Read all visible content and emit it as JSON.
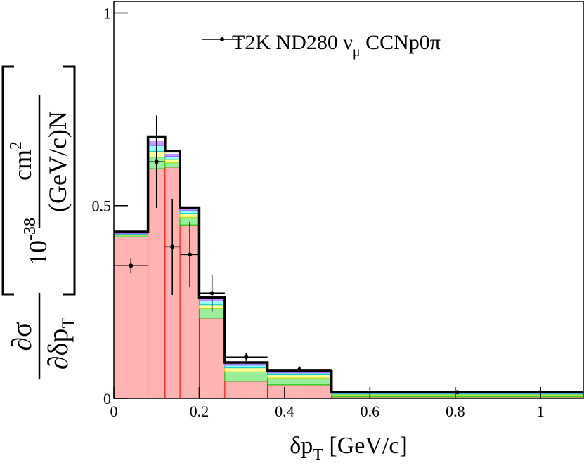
{
  "chart_data": {
    "type": "stacked_histogram",
    "xlim": [
      0,
      1.1
    ],
    "ylim": [
      0,
      1.03
    ],
    "xticks": [
      0,
      0.2,
      0.4,
      0.6,
      0.8,
      1
    ],
    "yticks": [
      0,
      0.5,
      1
    ],
    "xlabel": {
      "main": "δp",
      "sub": "T",
      "rest": " [GeV/c]"
    },
    "ylabel": {
      "num": "∂σ",
      "den": "∂δp",
      "den_sub": "T",
      "scale": "10",
      "scale_sup": "-38",
      "unit_num": "cm",
      "unit_num_sup": "2",
      "unit_den": "(GeV/c)N"
    },
    "bins": [
      0,
      0.08,
      0.12,
      0.155,
      0.2,
      0.26,
      0.36,
      0.51,
      1.1
    ],
    "series": [
      {
        "color": "#ffb3b3",
        "edge": "#ff0000",
        "values": [
          0.419,
          0.596,
          0.6,
          0.45,
          0.208,
          0.044,
          0.035,
          0.004
        ]
      },
      {
        "color": "#99ee99",
        "edge": "#00cc00",
        "values": [
          0.004,
          0.03,
          0.012,
          0.02,
          0.025,
          0.025,
          0.018,
          0.005
        ]
      },
      {
        "color": "#ffff99",
        "edge": "#dddd00",
        "values": [
          0.002,
          0.015,
          0.008,
          0.01,
          0.01,
          0.01,
          0.008,
          0.002
        ]
      },
      {
        "color": "#99ffff",
        "edge": "#00cccc",
        "values": [
          0.002,
          0.015,
          0.008,
          0.008,
          0.01,
          0.007,
          0.005,
          0.002
        ]
      },
      {
        "color": "#cc99ff",
        "edge": "#9966ff",
        "values": [
          0.002,
          0.012,
          0.005,
          0.005,
          0.005,
          0.003,
          0.002,
          0.001
        ]
      }
    ],
    "outline": {
      "color": "#000000",
      "values": [
        0.432,
        0.679,
        0.641,
        0.495,
        0.262,
        0.093,
        0.071,
        0.016
      ]
    },
    "points": {
      "legend": [
        "T2K ND280 ν",
        "μ",
        " CCNp0π"
      ],
      "color": "#000000",
      "x": [
        0.04,
        0.1,
        0.137,
        0.178,
        0.23,
        0.31,
        0.435,
        0.805
      ],
      "xerr": [
        0.04,
        0.02,
        0.018,
        0.022,
        0.03,
        0.05,
        0.075,
        0.295
      ],
      "values": [
        0.344,
        0.614,
        0.393,
        0.373,
        0.273,
        0.107,
        0.075,
        0.016
      ],
      "yerr": [
        0.02,
        0.12,
        0.125,
        0.085,
        0.048,
        0.01,
        0.008,
        0.003
      ]
    }
  }
}
